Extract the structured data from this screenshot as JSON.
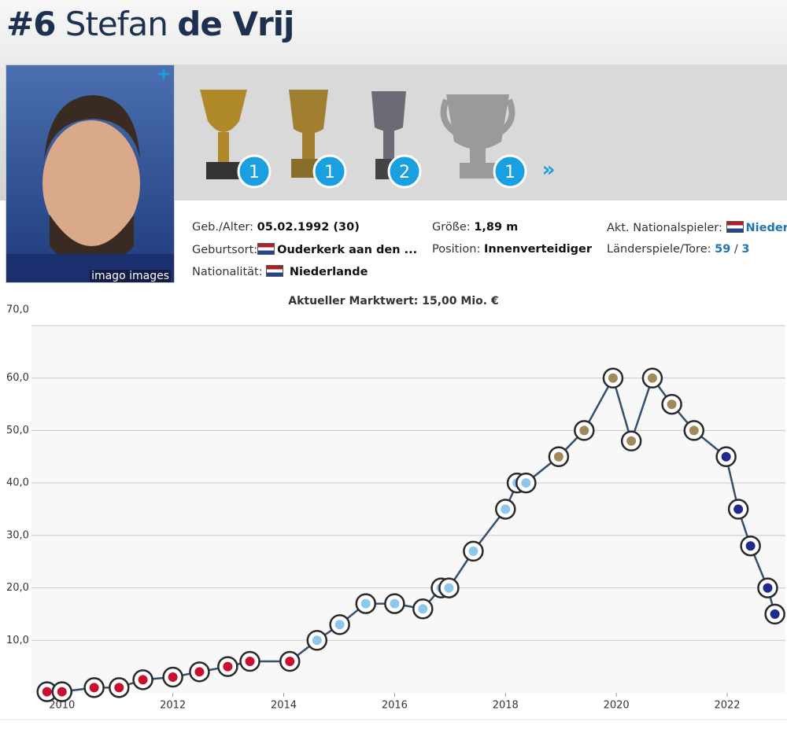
{
  "header": {
    "number": "#6",
    "first_name": "Stefan",
    "last_name": "de Vrij"
  },
  "photo": {
    "caption": "imago images"
  },
  "trophies": [
    1,
    1,
    2,
    1
  ],
  "info": [
    {
      "label": "Geb./Alter:",
      "value": "05.02.1992 (30)"
    },
    {
      "label": "Geburtsort:",
      "value": "Ouderkerk aan den ..."
    },
    {
      "label": "Nationalität:",
      "value": "Niederlande"
    },
    {
      "label": "Größe:",
      "value": "1,89 m"
    },
    {
      "label": "Position:",
      "value": "Innenverteidiger"
    },
    {
      "label": "Akt. Nationalspieler:",
      "value": "Niederlande"
    }
  ],
  "caps": {
    "label": "Länderspiele/Tore:",
    "games": 59,
    "separator": "/",
    "goals": 3
  },
  "market_value": {
    "label": "Aktueller Marktwert:",
    "value": "15,00 Mio. €"
  },
  "chart_data": {
    "type": "line",
    "x": [
      2009.73,
      2010.0,
      2010.58,
      2011.03,
      2011.46,
      2012.0,
      2012.48,
      2012.99,
      2013.39,
      2014.11,
      2014.6,
      2015.01,
      2015.48,
      2016.0,
      2016.51,
      2016.84,
      2016.98,
      2017.42,
      2018.0,
      2018.21,
      2018.37,
      2018.96,
      2019.42,
      2019.94,
      2020.27,
      2020.65,
      2021.0,
      2021.4,
      2021.98,
      2022.2,
      2022.42,
      2022.73,
      2022.86
    ],
    "values": [
      0.2,
      0.2,
      1.0,
      1.0,
      2.5,
      3.0,
      4.0,
      5.0,
      6.0,
      6.0,
      10.0,
      13.0,
      17.0,
      17.0,
      16.0,
      20.0,
      20.0,
      27.0,
      35.0,
      40.0,
      40.0,
      45.0,
      50.0,
      60.0,
      48.0,
      60.0,
      55.0,
      50.0,
      45.0,
      35.0,
      28.0,
      20.0,
      15.0
    ],
    "color": "#33506f",
    "point_colors": [
      "#c8102e",
      "#c8102e",
      "#c8102e",
      "#c8102e",
      "#c8102e",
      "#c8102e",
      "#c8102e",
      "#c8102e",
      "#c8102e",
      "#c8102e",
      "#8fc7ec",
      "#8fc7ec",
      "#8fc7ec",
      "#8fc7ec",
      "#8fc7ec",
      "#8fc7ec",
      "#8fc7ec",
      "#8fc7ec",
      "#8fc7ec",
      "#8fc7ec",
      "#8fc7ec",
      "#a08a5a",
      "#a08a5a",
      "#a08a5a",
      "#a08a5a",
      "#a08a5a",
      "#a08a5a",
      "#a08a5a",
      "#1f2a8c",
      "#1f2a8c",
      "#1f2a8c",
      "#1f2a8c",
      "#1f2a8c"
    ],
    "xlim": [
      2009.45,
      2023.05
    ],
    "ylim": [
      0,
      70
    ],
    "xticks": [
      2010,
      2012,
      2014,
      2016,
      2018,
      2020,
      2022
    ],
    "yticks": [
      {
        "value": 10,
        "label": "10,0"
      },
      {
        "value": 20,
        "label": "20,0"
      },
      {
        "value": 30,
        "label": "30,0"
      },
      {
        "value": 40,
        "label": "40,0"
      },
      {
        "value": 50,
        "label": "50,0"
      },
      {
        "value": 60,
        "label": "60,0"
      },
      {
        "value": 70,
        "label": "70,0"
      }
    ],
    "grid": true
  }
}
